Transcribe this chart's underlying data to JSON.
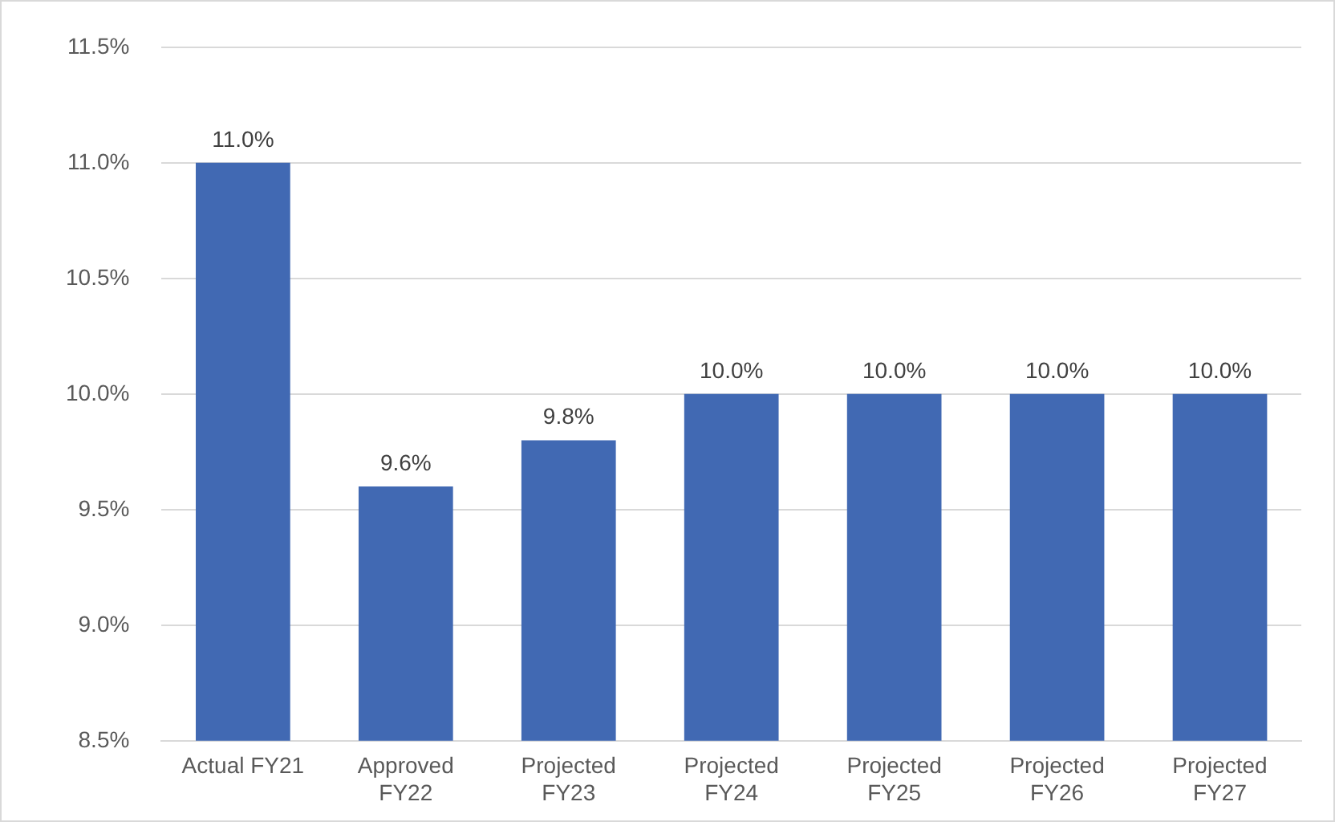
{
  "chart_data": {
    "type": "bar",
    "categories": [
      "Actual FY21",
      "Approved FY22",
      "Projected FY23",
      "Projected FY24",
      "Projected FY25",
      "Projected FY26",
      "Projected FY27"
    ],
    "values": [
      11.0,
      9.6,
      9.8,
      10.0,
      10.0,
      10.0,
      10.0
    ],
    "value_labels": [
      "11.0%",
      "9.6%",
      "9.8%",
      "10.0%",
      "10.0%",
      "10.0%",
      "10.0%"
    ],
    "color": "#4169b3",
    "ylim": [
      8.5,
      11.5
    ],
    "yticks": [
      {
        "value": 8.5,
        "label": "8.5%"
      },
      {
        "value": 9.0,
        "label": "9.0%"
      },
      {
        "value": 9.5,
        "label": "9.5%"
      },
      {
        "value": 10.0,
        "label": "10.0%"
      },
      {
        "value": 10.5,
        "label": "10.5%"
      },
      {
        "value": 11.0,
        "label": "11.0%"
      },
      {
        "value": 11.5,
        "label": "11.5%"
      }
    ],
    "grid": "y",
    "legend": false
  }
}
